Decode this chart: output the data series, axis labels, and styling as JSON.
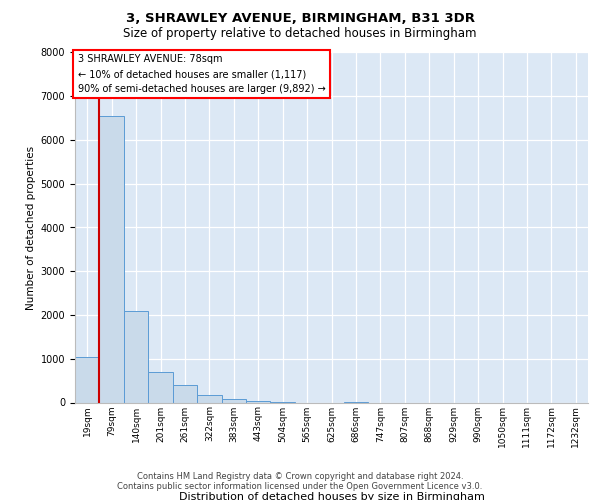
{
  "title1": "3, SHRAWLEY AVENUE, BIRMINGHAM, B31 3DR",
  "title2": "Size of property relative to detached houses in Birmingham",
  "xlabel": "Distribution of detached houses by size in Birmingham",
  "ylabel": "Number of detached properties",
  "footer1": "Contains HM Land Registry data © Crown copyright and database right 2024.",
  "footer2": "Contains public sector information licensed under the Open Government Licence v3.0.",
  "annotation_line1": "3 SHRAWLEY AVENUE: 78sqm",
  "annotation_line2": "← 10% of detached houses are smaller (1,117)",
  "annotation_line3": "90% of semi-detached houses are larger (9,892) →",
  "bar_color": "#c9daea",
  "bar_edge_color": "#5b9bd5",
  "marker_color": "#cc0000",
  "background_color": "#dce8f5",
  "fig_background": "#ffffff",
  "categories": [
    "19sqm",
    "79sqm",
    "140sqm",
    "201sqm",
    "261sqm",
    "322sqm",
    "383sqm",
    "443sqm",
    "504sqm",
    "565sqm",
    "625sqm",
    "686sqm",
    "747sqm",
    "807sqm",
    "868sqm",
    "929sqm",
    "990sqm",
    "1050sqm",
    "1111sqm",
    "1172sqm",
    "1232sqm"
  ],
  "values": [
    1050,
    6550,
    2100,
    700,
    390,
    170,
    80,
    40,
    10,
    0,
    0,
    10,
    0,
    0,
    0,
    0,
    0,
    0,
    0,
    0,
    0
  ],
  "ylim_max": 8000,
  "yticks": [
    0,
    1000,
    2000,
    3000,
    4000,
    5000,
    6000,
    7000,
    8000
  ],
  "bar_width": 1.0,
  "title1_fontsize": 9.5,
  "title2_fontsize": 8.5,
  "ylabel_fontsize": 7.5,
  "xlabel_fontsize": 8.0,
  "tick_fontsize": 7.0,
  "annot_fontsize": 7.0,
  "footer_fontsize": 6.0
}
